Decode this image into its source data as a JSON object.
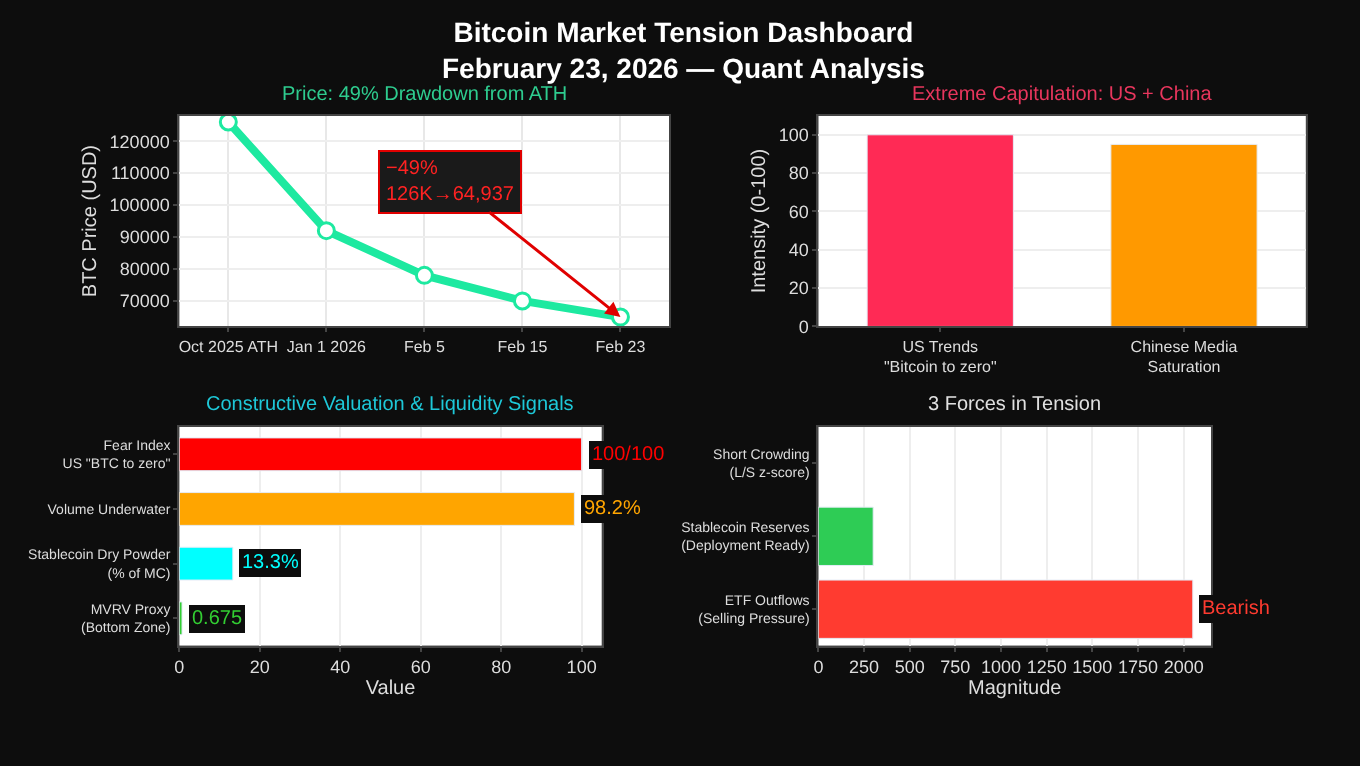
{
  "chart_data": [
    {
      "type": "line",
      "title": "Bitcoin Market Tension Dashboard\nFebruary 23, 2026 — Quant Analysis",
      "subtitle": "Price: 49% Drawdown from ATH",
      "ylabel": "BTC Price (USD)",
      "categories": [
        "Oct 2025 ATH",
        "Jan 1 2026",
        "Feb 5",
        "Feb 15",
        "Feb 23"
      ],
      "series": [
        {
          "color": "#1de9a0",
          "values": [
            126000,
            92000,
            78000,
            70000,
            64937
          ]
        }
      ],
      "ylim": [
        62000,
        128000
      ],
      "yticks": [
        70000,
        80000,
        90000,
        100000,
        110000,
        120000
      ],
      "grid": true,
      "marker": "circle",
      "line_style": "solid",
      "annotations": [
        {
          "text": "−49%\n126K→64,937",
          "x": "Feb 23",
          "y": 64937
        }
      ]
    },
    {
      "type": "bar",
      "title": "Extreme Capitulation: US + China",
      "ylabel": "Intensity (0-100)",
      "categories": [
        "US Trends\n\"Bitcoin to zero\"",
        "Chinese Media\nSaturation"
      ],
      "values": [
        100,
        95
      ],
      "colors": [
        "#ff2a55",
        "#ff9900"
      ],
      "ylim": [
        0,
        110
      ],
      "yticks": [
        0,
        20,
        40,
        60,
        80,
        100
      ],
      "grid": "y"
    },
    {
      "type": "bar",
      "orientation": "horizontal",
      "title": "Constructive Valuation & Liquidity Signals",
      "xlabel": "Value",
      "categories": [
        "Fear Index\nUS \"BTC to zero\"",
        "Volume Underwater",
        "Stablecoin Dry Powder\n(% of MC)",
        "MVRV Proxy\n(Bottom Zone)"
      ],
      "values": [
        100,
        98.2,
        13.3,
        0.675
      ],
      "colors": [
        "#ff0000",
        "#ffa500",
        "#00ffff",
        "#32cd32"
      ],
      "value_labels": [
        "100/100",
        "98.2%",
        "13.3%",
        "0.675"
      ],
      "xlim": [
        0,
        105
      ],
      "xticks": [
        0,
        20,
        40,
        60,
        80,
        100
      ],
      "grid": "x"
    },
    {
      "type": "bar",
      "orientation": "horizontal",
      "title": "3 Forces in Tension",
      "xlabel": "Magnitude",
      "categories": [
        "Short Crowding\n(L/S z-score)",
        "Stablecoin Reserves\n(Deployment Ready)",
        "ETF Outflows\n(Selling Pressure)"
      ],
      "values": [
        null,
        300,
        2050
      ],
      "colors": [
        "#3498db",
        "#2ecc55",
        "#ff3b30"
      ],
      "value_labels": [
        null,
        null,
        "Bearish"
      ],
      "xlim": [
        0,
        2150
      ],
      "xticks": [
        0,
        250,
        500,
        750,
        1000,
        1250,
        1500,
        1750,
        2000
      ],
      "grid": "x"
    }
  ]
}
